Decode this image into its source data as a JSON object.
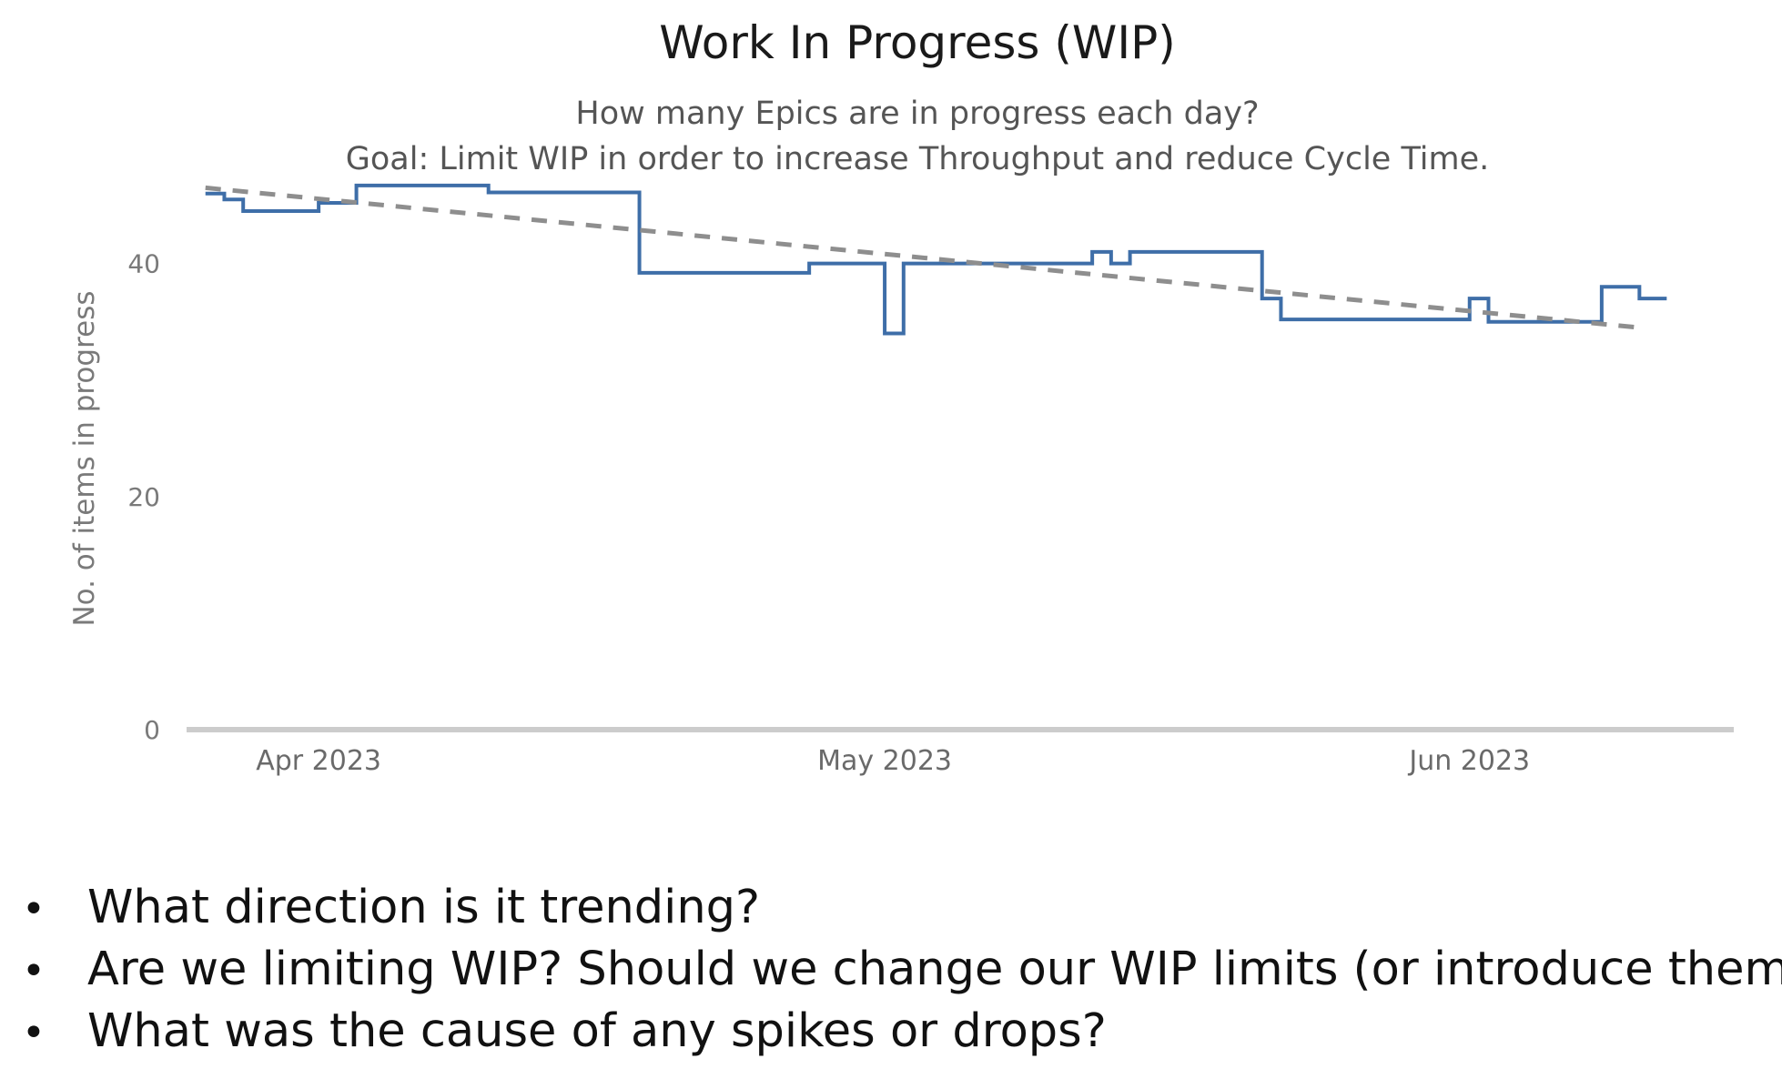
{
  "chart_data": {
    "type": "line",
    "title": "Work In Progress (WIP)",
    "subtitle_lines": [
      "How many Epics are in progress each day?",
      "Goal: Limit WIP in order to increase Throughput and reduce Cycle Time."
    ],
    "ylabel": "No. of items in progress",
    "xlabel": "",
    "ylim": [
      0,
      47
    ],
    "yticks": [
      0,
      20,
      40
    ],
    "xlim": [
      "2023-03-25",
      "2023-06-15"
    ],
    "xticks": [
      {
        "date": "2023-04-01",
        "label": "Apr 2023"
      },
      {
        "date": "2023-05-01",
        "label": "May 2023"
      },
      {
        "date": "2023-06-01",
        "label": "Jun 2023"
      }
    ],
    "grid": false,
    "legend": "none",
    "series": [
      {
        "style": "step",
        "color": "#3e6ea8",
        "x": [
          "2023-03-26",
          "2023-03-27",
          "2023-03-28",
          "2023-04-01",
          "2023-04-03",
          "2023-04-10",
          "2023-04-18",
          "2023-04-27",
          "2023-05-01",
          "2023-05-02",
          "2023-05-12",
          "2023-05-13",
          "2023-05-14",
          "2023-05-21",
          "2023-05-22",
          "2023-06-01",
          "2023-06-02",
          "2023-06-08",
          "2023-06-10"
        ],
        "values": [
          46,
          45.5,
          44.5,
          45.2,
          46.7,
          46.1,
          39.2,
          40,
          34,
          40,
          41,
          40,
          41,
          37,
          35.2,
          37,
          35,
          38,
          37
        ]
      },
      {
        "name": "trend",
        "style": "dashed",
        "color": "#8e8e8e",
        "x": [
          "2023-03-26",
          "2023-06-10"
        ],
        "values": [
          46.5,
          34.5
        ]
      }
    ]
  },
  "bullets": [
    "What direction is it trending?",
    "Are we limiting WIP? Should we change our WIP limits (or introduce them)?",
    "What was the cause of any spikes or drops?"
  ],
  "bullet_symbol": "•"
}
